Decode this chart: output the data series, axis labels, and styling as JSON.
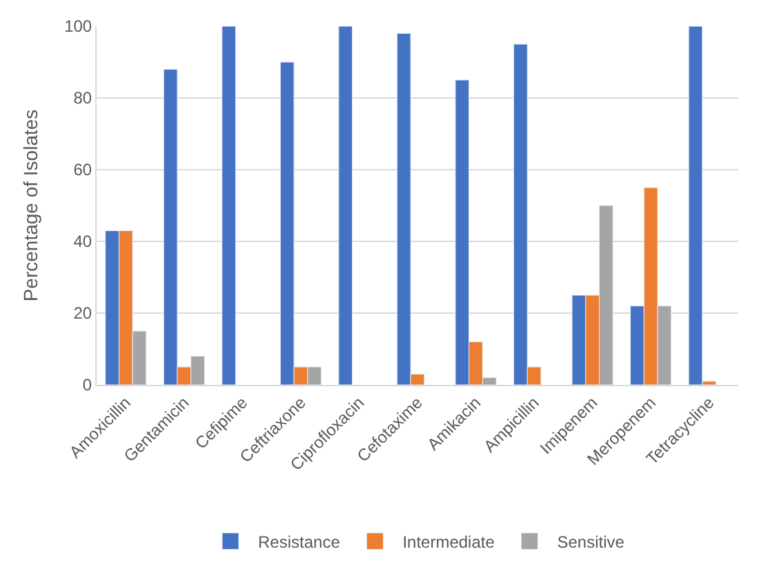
{
  "chart_data": {
    "type": "bar",
    "ylabel": "Percentage of Isolates",
    "categories": [
      "Amoxicillin",
      "Gentamicin",
      "Cefipime",
      "Ceftriaxone",
      "Ciprofloxacin",
      "Cefotaxime",
      "Amikacin",
      "Ampicillin",
      "Imipenem",
      "Meropenem",
      "Tetracycline"
    ],
    "series": [
      {
        "name": "Resistance",
        "color": "#4472c4",
        "values": [
          43,
          88,
          100,
          90,
          100,
          98,
          85,
          95,
          25,
          22,
          100
        ]
      },
      {
        "name": "Intermediate",
        "color": "#ed7d31",
        "values": [
          43,
          5,
          null,
          5,
          null,
          3,
          12,
          5,
          25,
          55,
          1
        ]
      },
      {
        "name": "Sensitive",
        "color": "#a5a5a5",
        "values": [
          15,
          8,
          null,
          5,
          null,
          null,
          2,
          null,
          50,
          22,
          null
        ]
      }
    ],
    "ylim": [
      0,
      100
    ],
    "yticks": [
      0,
      20,
      40,
      60,
      80,
      100
    ],
    "grid": "y",
    "legend": "bottom"
  }
}
